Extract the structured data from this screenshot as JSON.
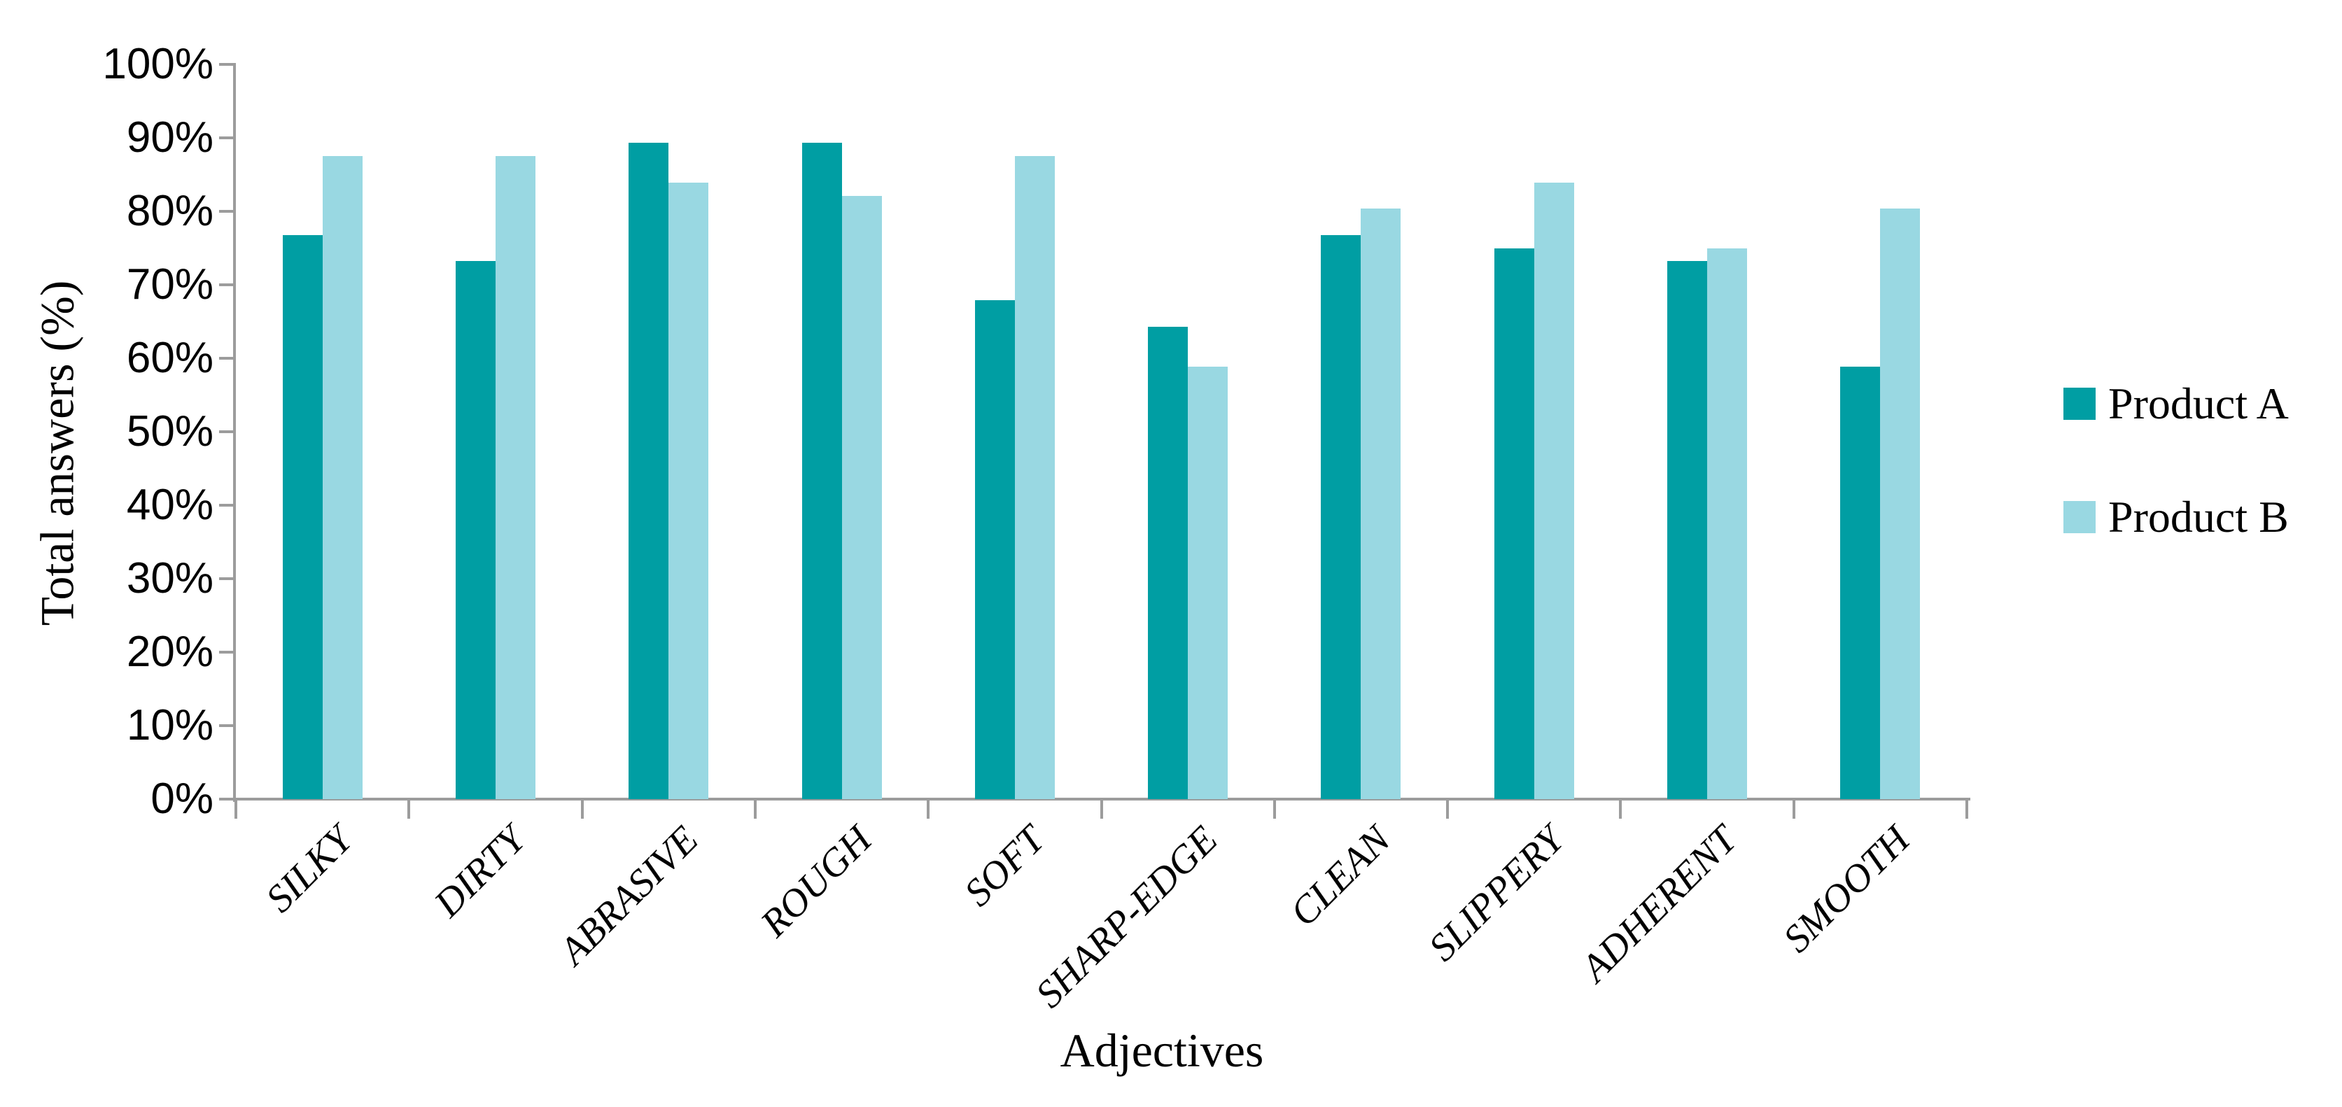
{
  "chart_data": {
    "type": "bar",
    "title": "",
    "xlabel": "Adjectives",
    "ylabel": "Total answers (%)",
    "categories": [
      "SILKY",
      "DIRTY",
      "ABRASIVE",
      "ROUGH",
      "SOFT",
      "SHARP-EDGE",
      "CLEAN",
      "SLIPPERY",
      "ADHERENT",
      "SMOOTH"
    ],
    "series": [
      {
        "name": "Product A",
        "color": "#009ea3",
        "values": [
          76.8,
          73.2,
          89.3,
          89.3,
          67.9,
          64.3,
          76.8,
          75.0,
          73.2,
          58.9
        ]
      },
      {
        "name": "Product B",
        "color": "#99d8e2",
        "values": [
          87.5,
          87.5,
          83.9,
          82.1,
          87.5,
          58.9,
          80.4,
          83.9,
          75.0,
          80.4
        ]
      }
    ],
    "y_ticks": [
      "0%",
      "10%",
      "20%",
      "30%",
      "40%",
      "50%",
      "60%",
      "70%",
      "80%",
      "90%",
      "100%"
    ],
    "ylim": [
      0,
      100
    ],
    "grid": false,
    "legend_position": "right",
    "axis_color": "#9c9c9c",
    "text_color": "#000000",
    "background": "#ffffff"
  }
}
